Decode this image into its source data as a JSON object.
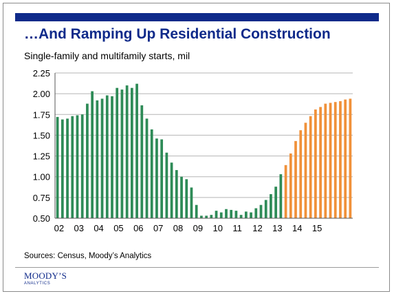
{
  "header": {
    "title": "…And Ramping Up Residential Construction",
    "subtitle": "Single-family and multifamily starts, mil"
  },
  "footer": {
    "sources": "Sources: Census, Moody’s Analytics",
    "logo_main": "MOODY’S",
    "logo_sub": "ANALYTICS"
  },
  "colors": {
    "brand": "#0f2a8a",
    "historical": "#2e8b57",
    "forecast": "#f0913a"
  },
  "chart_data": {
    "type": "bar",
    "title": "…And Ramping Up Residential Construction",
    "subtitle": "Single-family and multifamily starts, mil",
    "xlabel": "",
    "ylabel": "",
    "ylim": [
      0.5,
      2.25
    ],
    "yticks": [
      "0.50",
      "0.75",
      "1.00",
      "1.25",
      "1.50",
      "1.75",
      "2.00",
      "2.25"
    ],
    "xticks": [
      "02",
      "03",
      "04",
      "05",
      "06",
      "07",
      "08",
      "09",
      "10",
      "11",
      "12",
      "13",
      "14",
      "15"
    ],
    "grid": true,
    "legend": "none",
    "series": [
      {
        "values": [
          1.72,
          1.69,
          1.7,
          1.73,
          1.74,
          1.75,
          1.88,
          2.03,
          1.92,
          1.94,
          1.98,
          1.97,
          2.07,
          2.05,
          2.1,
          2.07,
          2.12,
          1.86,
          1.7,
          1.57,
          1.46,
          1.45,
          1.29,
          1.17,
          1.08,
          1.0,
          0.97,
          0.87,
          0.66,
          0.53,
          0.53,
          0.54,
          0.59,
          0.57,
          0.61,
          0.6,
          0.59,
          0.54,
          0.58,
          0.57,
          0.62,
          0.66,
          0.72,
          0.79,
          0.88,
          1.03
        ],
        "color": "#2e8b57"
      },
      {
        "values": [
          1.14,
          1.28,
          1.43,
          1.56,
          1.65,
          1.73,
          1.81,
          1.84,
          1.88,
          1.89,
          1.9,
          1.91,
          1.93,
          1.94
        ],
        "color": "#f0913a"
      }
    ]
  }
}
